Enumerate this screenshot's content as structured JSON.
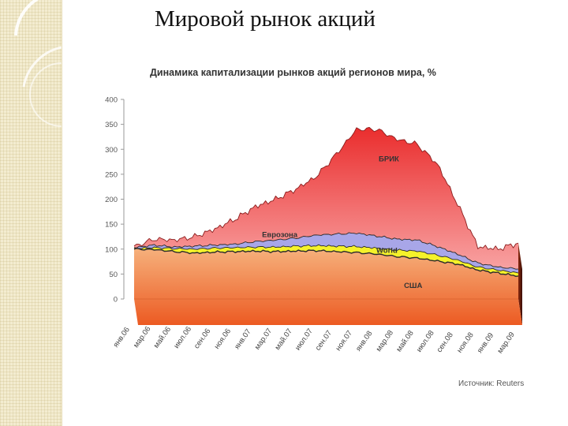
{
  "slide": {
    "title": "Мировой рынок акций"
  },
  "colors": {
    "usa_top": "#f6b17c",
    "usa_bottom": "#ec5a22",
    "world": "#f5f22a",
    "eurozone": "#a8a6e8",
    "bric_top": "#ea2d2d",
    "bric_bottom": "#f8a2a2"
  },
  "chart_data": {
    "type": "area",
    "title": "Динамика капитализации рынков акций регионов мира, %",
    "source": "Источник: Reuters",
    "ylim": [
      0,
      400
    ],
    "y_ticks": [
      "0",
      "50",
      "100",
      "150",
      "200",
      "250",
      "300",
      "350",
      "400"
    ],
    "grid": false,
    "x_ticks": [
      "янв.06",
      "мар.06",
      "май.06",
      "июл.06",
      "сен.06",
      "ноя.06",
      "янв.07",
      "мар.07",
      "май.07",
      "июл.07",
      "сен.07",
      "ноя.07",
      "янв.08",
      "мар.08",
      "май.08",
      "июл.08",
      "сен.08",
      "ноя.08",
      "янв.09",
      "мар.09"
    ],
    "series": [
      {
        "name": "США",
        "values": [
          100,
          99,
          95,
          92,
          94,
          95,
          96,
          95,
          96,
          97,
          95,
          93,
          90,
          85,
          82,
          76,
          70,
          58,
          52,
          46
        ]
      },
      {
        "name": "World",
        "values": [
          101,
          103,
          101,
          100,
          102,
          103,
          104,
          104,
          106,
          107,
          106,
          105,
          102,
          98,
          96,
          88,
          78,
          64,
          58,
          52
        ]
      },
      {
        "name": "Еврозона",
        "values": [
          103,
          108,
          104,
          106,
          108,
          110,
          115,
          118,
          122,
          128,
          130,
          132,
          126,
          120,
          118,
          105,
          90,
          72,
          64,
          60
        ]
      },
      {
        "name": "БРИК",
        "values": [
          105,
          120,
          118,
          125,
          140,
          160,
          185,
          200,
          220,
          245,
          290,
          340,
          340,
          320,
          310,
          270,
          190,
          105,
          100,
          112
        ]
      }
    ]
  }
}
